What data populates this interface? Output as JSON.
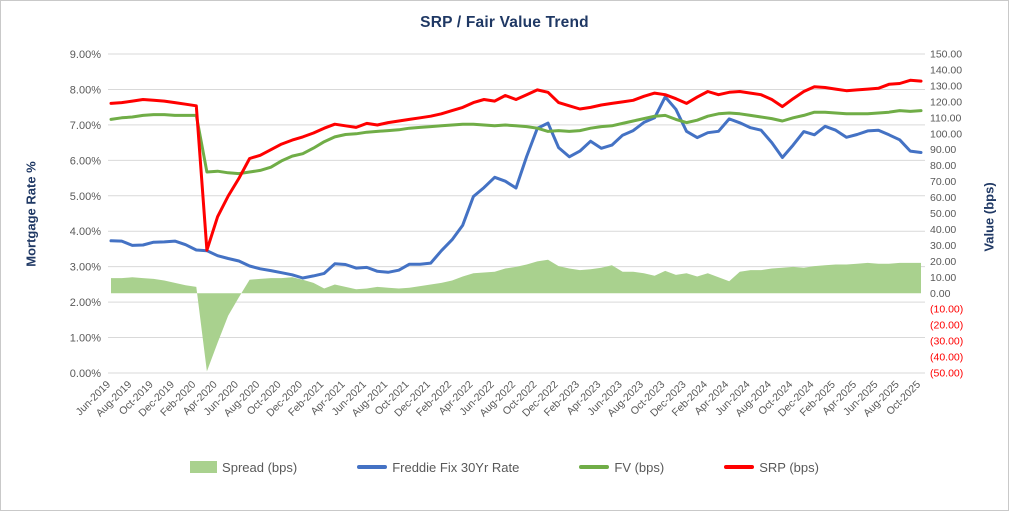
{
  "chart": {
    "title": "SRP / Fair Value Trend",
    "left_axis_title": "Mortgage Rate %",
    "right_axis_title": "Value (bps)"
  },
  "chart_data": {
    "type": "combo-line-area",
    "title": "SRP / Fair Value Trend",
    "x_frequency": "monthly",
    "x_range": "Jun-2019 to Oct-2025",
    "x_tick_labels": [
      "Jun-2019",
      "Aug-2019",
      "Oct-2019",
      "Dec-2019",
      "Feb-2020",
      "Apr-2020",
      "Jun-2020",
      "Aug-2020",
      "Oct-2020",
      "Dec-2020",
      "Feb-2021",
      "Apr-2021",
      "Jun-2021",
      "Aug-2021",
      "Oct-2021",
      "Dec-2021",
      "Feb-2022",
      "Apr-2022",
      "Jun-2022",
      "Aug-2022",
      "Oct-2022",
      "Dec-2022",
      "Feb-2023",
      "Apr-2023",
      "Jun-2023",
      "Aug-2023",
      "Oct-2023",
      "Dec-2023",
      "Feb-2024",
      "Apr-2024",
      "Jun-2024",
      "Aug-2024",
      "Oct-2024",
      "Dec-2024",
      "Feb-2025",
      "Apr-2025",
      "Jun-2025",
      "Aug-2025",
      "Oct-2025"
    ],
    "left_axis": {
      "title": "Mortgage Rate %",
      "min": 0,
      "max": 9,
      "tick_labels": [
        "0.00%",
        "1.00%",
        "2.00%",
        "3.00%",
        "4.00%",
        "5.00%",
        "6.00%",
        "7.00%",
        "8.00%",
        "9.00%"
      ]
    },
    "right_axis": {
      "title": "Value (bps)",
      "min": -50,
      "max": 150,
      "tick_labels": [
        "(50.00)",
        "(40.00)",
        "(30.00)",
        "(20.00)",
        "(10.00)",
        "0.00",
        "10.00",
        "20.00",
        "30.00",
        "40.00",
        "50.00",
        "60.00",
        "70.00",
        "80.00",
        "90.00",
        "100.00",
        "110.00",
        "120.00",
        "130.00",
        "140.00",
        "150.00"
      ]
    },
    "grid": "horizontal",
    "legend_position": "bottom",
    "series": [
      {
        "name": "Spread (bps)",
        "type": "area",
        "axis": "right",
        "color": "#a9d18e",
        "values": [
          9.5,
          9.5,
          10,
          9.5,
          9,
          8,
          6.5,
          5,
          4,
          -49,
          -31,
          -14,
          -2.5,
          8.5,
          9,
          9.5,
          9.5,
          10,
          8.5,
          6.5,
          3,
          5.5,
          4,
          2.5,
          3,
          4,
          3.5,
          3,
          3.5,
          4.5,
          5.5,
          6.5,
          8,
          10.5,
          12.5,
          13,
          13.5,
          15.5,
          16.5,
          18,
          20,
          21,
          17,
          15.5,
          14.5,
          15,
          16,
          17.5,
          13.5,
          13.5,
          12.5,
          11,
          14,
          11.5,
          12.5,
          10.5,
          12.5,
          10,
          7.5,
          13.5,
          14.5,
          14.5,
          15.5,
          16,
          16.5,
          16,
          17,
          17.5,
          18,
          18,
          18.5,
          19,
          18.5,
          18.5,
          19,
          19,
          19
        ]
      },
      {
        "name": "Freddie Fix 30Yr Rate",
        "type": "line",
        "axis": "left",
        "color": "#4472c4",
        "values": [
          3.73,
          3.72,
          3.6,
          3.61,
          3.69,
          3.7,
          3.72,
          3.62,
          3.47,
          3.45,
          3.31,
          3.23,
          3.16,
          3.02,
          2.94,
          2.89,
          2.83,
          2.77,
          2.68,
          2.74,
          2.81,
          3.08,
          3.06,
          2.96,
          2.98,
          2.87,
          2.84,
          2.9,
          3.07,
          3.07,
          3.1,
          3.45,
          3.76,
          4.17,
          4.98,
          5.23,
          5.52,
          5.41,
          5.22,
          6.11,
          6.9,
          7.05,
          6.36,
          6.1,
          6.26,
          6.54,
          6.34,
          6.43,
          6.71,
          6.84,
          7.07,
          7.2,
          7.79,
          7.44,
          6.82,
          6.64,
          6.78,
          6.82,
          7.17,
          7.06,
          6.92,
          6.85,
          6.5,
          6.08,
          6.43,
          6.81,
          6.72,
          6.96,
          6.85,
          6.65,
          6.73,
          6.83,
          6.85,
          6.72,
          6.58,
          6.26,
          6.22
        ]
      },
      {
        "name": "FV (bps)",
        "type": "line",
        "axis": "right",
        "color": "#70ad47",
        "values": [
          109,
          110,
          110.5,
          111.5,
          112,
          112,
          111.5,
          111.5,
          111.5,
          76,
          76.5,
          75.5,
          75,
          76,
          77,
          79,
          83,
          86,
          87.5,
          91,
          95,
          98,
          99.5,
          100,
          101,
          101.5,
          102,
          102.5,
          103.5,
          104,
          104.5,
          105,
          105.5,
          106,
          106,
          105.5,
          105,
          105.5,
          105,
          104.5,
          103.5,
          101.5,
          102,
          101.5,
          102,
          103.5,
          104.5,
          105,
          106.5,
          108,
          109.5,
          111,
          111.5,
          109,
          107,
          108.5,
          111,
          112.5,
          113,
          112.5,
          111.5,
          110.5,
          109.5,
          108,
          110,
          111.5,
          113.5,
          113.5,
          113,
          112.5,
          112.5,
          112.5,
          113,
          113.5,
          114.5,
          114,
          114.5
        ]
      },
      {
        "name": "SRP (bps)",
        "type": "line",
        "axis": "right",
        "color": "#ff0000",
        "values": [
          119,
          119.5,
          120.5,
          121.5,
          121,
          120.5,
          119.5,
          118.5,
          117.5,
          27,
          48,
          61,
          72,
          84.5,
          86.5,
          90,
          93.5,
          96,
          98,
          100.5,
          103.5,
          106,
          105,
          104,
          106.5,
          105.5,
          107,
          108,
          109,
          110,
          111,
          112.5,
          114.5,
          116.5,
          119.5,
          121.5,
          120.5,
          124,
          121.5,
          124.5,
          127.5,
          126,
          119.5,
          117.5,
          115.5,
          116.5,
          118,
          119,
          120,
          121,
          123.5,
          125.5,
          124.5,
          122,
          119,
          123,
          126.5,
          124.5,
          126,
          126.5,
          125.5,
          124.5,
          121.5,
          117,
          122,
          126.5,
          129.5,
          129,
          128,
          127,
          127.5,
          128,
          128.5,
          131,
          131.5,
          133.5,
          133
        ]
      }
    ]
  },
  "colors": {
    "title_navy": "#1f3864",
    "tick_gray": "#595959",
    "negative_red": "#ff0000",
    "gridline": "#d9d9d9",
    "spread_fill": "#a9d18e",
    "freddie_blue": "#4472c4",
    "fv_green": "#70ad47",
    "srp_red": "#ff0000"
  }
}
